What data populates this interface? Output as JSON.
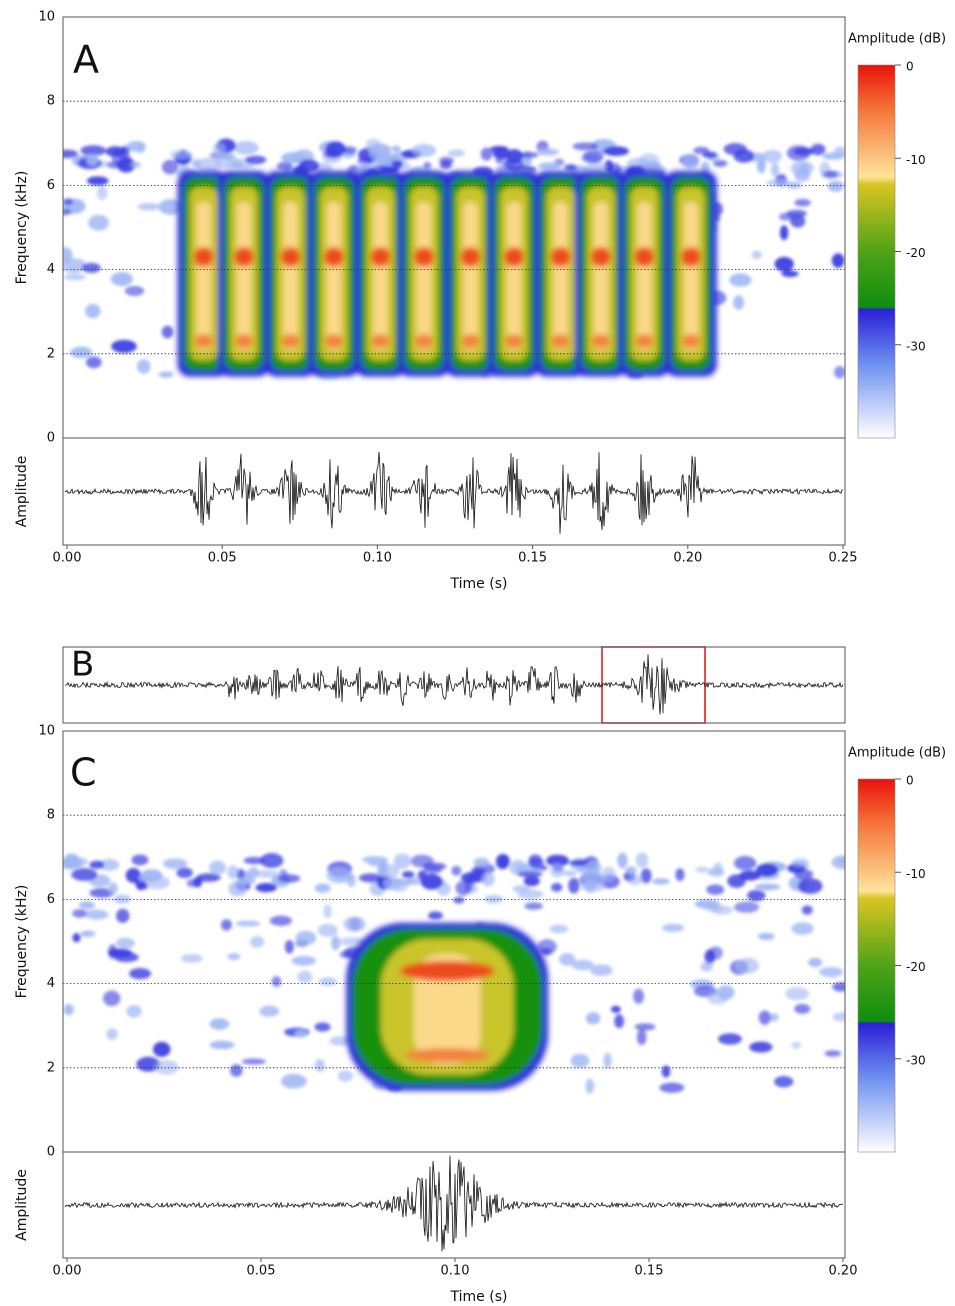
{
  "chart_data": [
    {
      "type": "spectrogram",
      "panel_label": "A",
      "ylabel": "Frequency (kHz)",
      "waveform_label": "Amplitude",
      "xlabel": "Time (s)",
      "ylim": [
        0,
        10
      ],
      "yticks": [
        0,
        2,
        4,
        6,
        8,
        10
      ],
      "grid": true,
      "xlim": [
        0,
        0.25
      ],
      "xticks": [
        {
          "value": 0,
          "label": "0.00"
        },
        {
          "value": 0.05,
          "label": "0.05"
        },
        {
          "value": 0.1,
          "label": "0.10"
        },
        {
          "value": 0.15,
          "label": "0.15"
        },
        {
          "value": 0.2,
          "label": "0.20"
        },
        {
          "value": 0.25,
          "label": "0.25"
        }
      ],
      "pulse_times": [
        0.044,
        0.057,
        0.072,
        0.086,
        0.101,
        0.115,
        0.13,
        0.144,
        0.159,
        0.172,
        0.186,
        0.201
      ],
      "colorbar": {
        "label": "Amplitude (dB)",
        "lim": [
          -40,
          0
        ],
        "ticks": [
          0,
          -10,
          -20,
          -30
        ]
      }
    },
    {
      "type": "waveform",
      "panel_label": "B"
    },
    {
      "type": "spectrogram",
      "panel_label": "C",
      "ylabel": "Frequency (kHz)",
      "waveform_label": "Amplitude",
      "xlabel": "Time (s)",
      "ylim": [
        0,
        10
      ],
      "yticks": [
        0,
        2,
        4,
        6,
        8,
        10
      ],
      "grid": true,
      "xlim": [
        0,
        0.2
      ],
      "xticks": [
        {
          "value": 0,
          "label": "0.00"
        },
        {
          "value": 0.05,
          "label": "0.05"
        },
        {
          "value": 0.1,
          "label": "0.10"
        },
        {
          "value": 0.15,
          "label": "0.15"
        },
        {
          "value": 0.2,
          "label": "0.20"
        }
      ],
      "pulse_times": [
        0.098
      ],
      "colorbar": {
        "label": "Amplitude (dB)",
        "lim": [
          -40,
          0
        ],
        "ticks": [
          0,
          -10,
          -20,
          -30
        ]
      }
    }
  ]
}
